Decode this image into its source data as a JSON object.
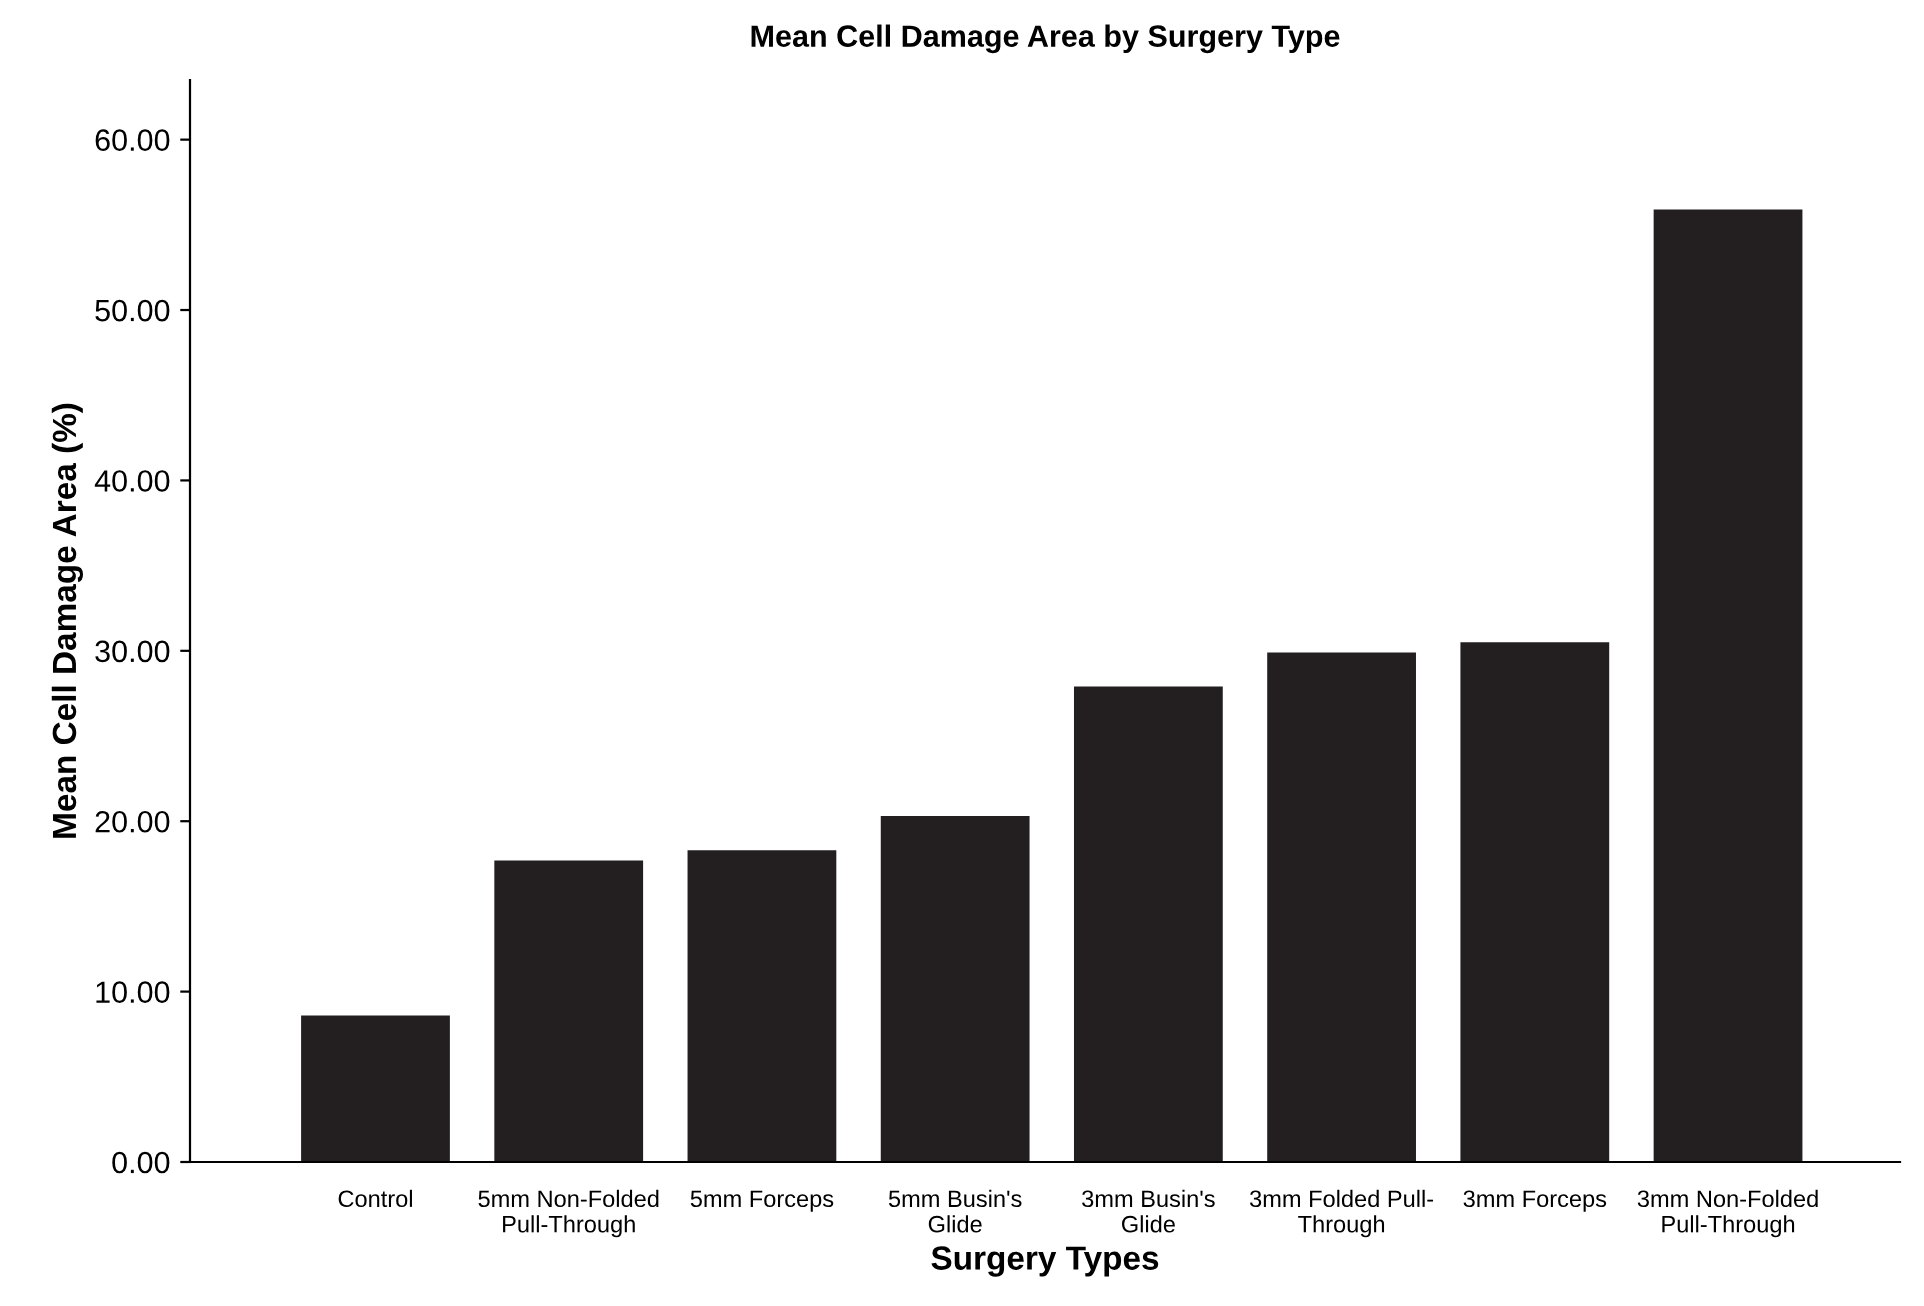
{
  "chart_data": {
    "type": "bar",
    "title": "Mean Cell Damage Area by Surgery Type",
    "xlabel": "Surgery Types",
    "ylabel": "Mean Cell Damage Area (%)",
    "categories": [
      "Control",
      "5mm Non-Folded\nPull-Through",
      "5mm Forceps",
      "5mm Busin's\nGlide",
      "3mm Busin's\nGlide",
      "3mm Folded Pull-\nThrough",
      "3mm Forceps",
      "3mm Non-Folded\nPull-Through"
    ],
    "values": [
      8.6,
      17.7,
      18.3,
      20.3,
      27.9,
      29.9,
      30.5,
      55.9
    ],
    "color": "#231f20",
    "ylim": [
      0,
      63.5
    ],
    "yticks": [
      {
        "value": 0,
        "label": "0.00"
      },
      {
        "value": 10,
        "label": "10.00"
      },
      {
        "value": 20,
        "label": "20.00"
      },
      {
        "value": 30,
        "label": "30.00"
      },
      {
        "value": 40,
        "label": "40.00"
      },
      {
        "value": 50,
        "label": "50.00"
      },
      {
        "value": 60,
        "label": "60.00"
      }
    ],
    "grid": false,
    "legend": false
  }
}
